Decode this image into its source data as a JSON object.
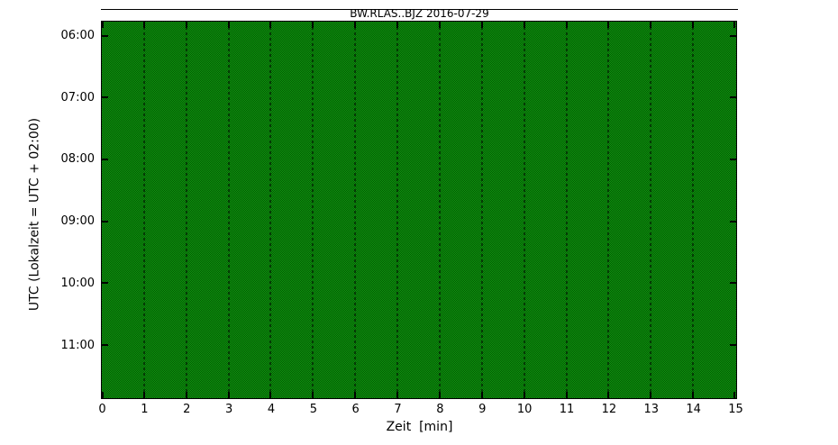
{
  "chart_data": {
    "type": "line",
    "subtype": "seismogram-dayplot",
    "title": "BW.RLAS..BJZ 2016-07-29",
    "xlabel": "Zeit  [min]",
    "ylabel": "UTC (Lokalzeit = UTC + 02:00)",
    "xlim": [
      0,
      15
    ],
    "minutes_per_line": 15,
    "x_ticks": [
      "0",
      "1",
      "2",
      "3",
      "4",
      "5",
      "6",
      "7",
      "8",
      "9",
      "10",
      "11",
      "12",
      "13",
      "14",
      "15"
    ],
    "y_ticks": [
      "06:00",
      "07:00",
      "08:00",
      "09:00",
      "10:00",
      "11:00"
    ],
    "grid": true,
    "legend": null,
    "trace_color": "#008000",
    "description": "Continuous seismic waveform day-plot (15 minutes per line, ~05:45 to ~11:52 UTC). Trace amplitudes are fully saturated/clipped, so the whole plot area appears as a solid dithered green texture; darker dashed vertical gridlines mark each minute; black ticks point inward on all four sides.",
    "annotations": [
      "thin horizontal black line spanning the plot width above the title (edge of cropped figure)"
    ]
  },
  "colors": {
    "trace_green_light": "#0f9b0f",
    "trace_green_dark": "#035303",
    "frame": "#000000",
    "background": "#ffffff",
    "gridline": "rgba(0,0,0,0.5)"
  }
}
